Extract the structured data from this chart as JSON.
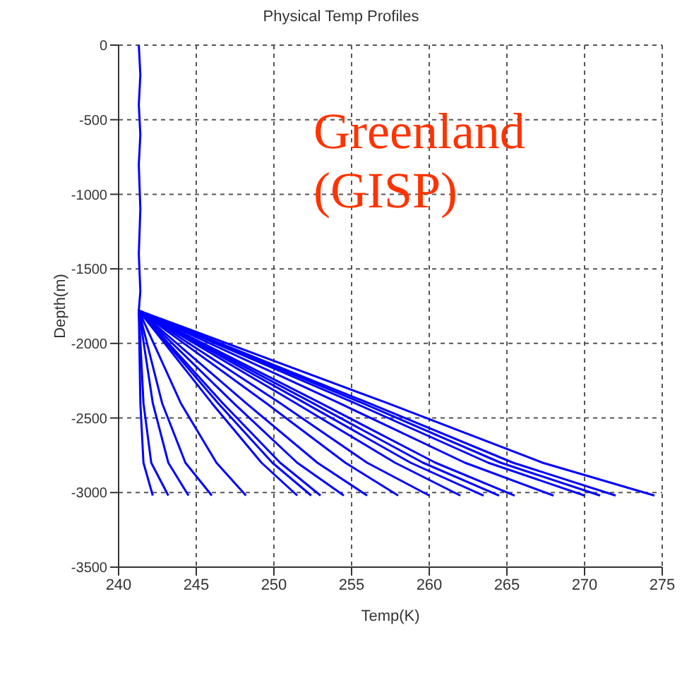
{
  "chart_data": {
    "type": "line",
    "title": "Physical Temp Profiles",
    "xlabel": "Temp(K)",
    "ylabel": "Depth(m)",
    "annotations": [
      "Greenland (GISP)"
    ],
    "xlim": [
      240,
      275
    ],
    "xticks": [
      240,
      245,
      250,
      255,
      260,
      265,
      270,
      275
    ],
    "ylim": [
      -3500,
      0
    ],
    "yticks": [
      0,
      -500,
      -1000,
      -1500,
      -2000,
      -2500,
      -3000,
      -3500
    ],
    "grid": true,
    "marker": "none",
    "line_style": "solid",
    "series": [
      {
        "color": "#0000ff",
        "x": [
          241.3,
          241.4,
          241.3,
          241.4,
          241.3,
          241.4,
          241.3,
          241.4,
          241.3,
          241.4,
          241.6,
          242.2
        ],
        "values": [
          0,
          -200,
          -400,
          -600,
          -800,
          -1100,
          -1400,
          -1650,
          -1780,
          -2400,
          -2800,
          -3020
        ]
      },
      {
        "color": "#0000ff",
        "x": [
          241.3,
          241.6,
          242.1,
          243.2
        ],
        "values": [
          -1780,
          -2400,
          -2800,
          -3020
        ]
      },
      {
        "color": "#0000ff",
        "x": [
          241.3,
          242.2,
          243.2,
          244.5
        ],
        "values": [
          -1780,
          -2400,
          -2800,
          -3020
        ]
      },
      {
        "color": "#0000ff",
        "x": [
          241.3,
          242.8,
          244.3,
          246
        ],
        "values": [
          -1780,
          -2400,
          -2800,
          -3020
        ]
      },
      {
        "color": "#0000ff",
        "x": [
          241.3,
          244,
          246.3,
          248.2
        ],
        "values": [
          -1780,
          -2400,
          -2800,
          -3020
        ]
      },
      {
        "color": "#0000ff",
        "x": [
          241.3,
          246,
          249.2,
          251.5
        ],
        "values": [
          -1780,
          -2400,
          -2800,
          -3020
        ]
      },
      {
        "color": "#0000ff",
        "x": [
          241.3,
          246.4,
          249.9,
          252.4
        ],
        "values": [
          -1780,
          -2400,
          -2800,
          -3020
        ]
      },
      {
        "color": "#0000ff",
        "x": [
          241.3,
          246.7,
          250.4,
          253
        ],
        "values": [
          -1780,
          -2400,
          -2800,
          -3020
        ]
      },
      {
        "color": "#0000ff",
        "x": [
          241.3,
          247.4,
          251.5,
          254.5
        ],
        "values": [
          -1780,
          -2400,
          -2800,
          -3020
        ]
      },
      {
        "color": "#0000ff",
        "x": [
          241.3,
          248.2,
          252.8,
          256
        ],
        "values": [
          -1780,
          -2400,
          -2800,
          -3020
        ]
      },
      {
        "color": "#0000ff",
        "x": [
          241.3,
          249.5,
          254.6,
          258
        ],
        "values": [
          -1780,
          -2400,
          -2800,
          -3020
        ]
      },
      {
        "color": "#0000ff",
        "x": [
          241.3,
          250.4,
          256,
          260
        ],
        "values": [
          -1780,
          -2400,
          -2800,
          -3020
        ]
      },
      {
        "color": "#0000ff",
        "x": [
          241.3,
          251.4,
          257.8,
          262
        ],
        "values": [
          -1780,
          -2400,
          -2800,
          -3020
        ]
      },
      {
        "color": "#0000ff",
        "x": [
          241.3,
          252,
          258.8,
          263.5
        ],
        "values": [
          -1780,
          -2400,
          -2800,
          -3020
        ]
      },
      {
        "color": "#0000ff",
        "x": [
          241.3,
          252.5,
          259.6,
          264.5
        ],
        "values": [
          -1780,
          -2400,
          -2800,
          -3020
        ]
      },
      {
        "color": "#0000ff",
        "x": [
          241.3,
          253,
          260.4,
          265.5
        ],
        "values": [
          -1780,
          -2400,
          -2800,
          -3020
        ]
      },
      {
        "color": "#0000ff",
        "x": [
          241.3,
          254.2,
          262.3,
          268
        ],
        "values": [
          -1780,
          -2400,
          -2800,
          -3020
        ]
      },
      {
        "color": "#0000ff",
        "x": [
          241.3,
          255.2,
          263.8,
          270
        ],
        "values": [
          -1780,
          -2400,
          -2800,
          -3020
        ]
      },
      {
        "color": "#0000ff",
        "x": [
          241.3,
          255.7,
          264.6,
          271
        ],
        "values": [
          -1780,
          -2400,
          -2800,
          -3020
        ]
      },
      {
        "color": "#0000ff",
        "x": [
          241.3,
          256.1,
          265.4,
          272
        ],
        "values": [
          -1780,
          -2400,
          -2800,
          -3020
        ]
      },
      {
        "color": "#0000ff",
        "x": [
          241.3,
          257.3,
          267.3,
          274.5
        ],
        "values": [
          -1780,
          -2400,
          -2800,
          -3020
        ]
      }
    ]
  }
}
